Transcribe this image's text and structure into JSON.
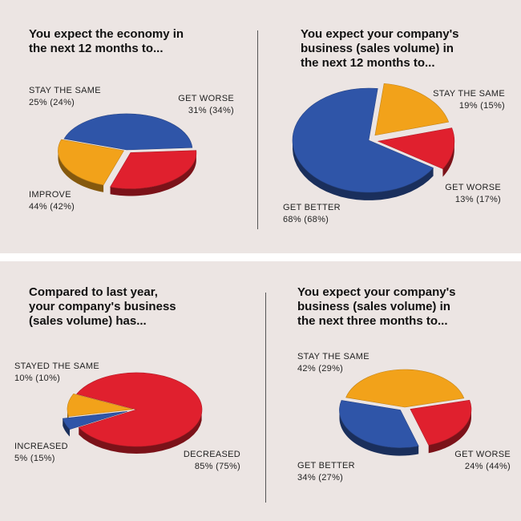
{
  "chart_data": [
    {
      "type": "pie",
      "title": "You expect the economy in the next 12 months to...",
      "slices": [
        {
          "label": "IMPROVE",
          "value": 44,
          "prev": 42,
          "text": "44% (42%)",
          "color": "#2f55a8"
        },
        {
          "label": "GET WORSE",
          "value": 31,
          "prev": 34,
          "text": "31% (34%)",
          "color": "#e0202e"
        },
        {
          "label": "STAY THE SAME",
          "value": 25,
          "prev": 24,
          "text": "25% (24%)",
          "color": "#f2a21a"
        }
      ]
    },
    {
      "type": "pie",
      "title": "You expect your company's business (sales volume) in the next 12 months to...",
      "slices": [
        {
          "label": "GET BETTER",
          "value": 68,
          "prev": 68,
          "text": "68% (68%)",
          "color": "#2f55a8"
        },
        {
          "label": "STAY THE SAME",
          "value": 19,
          "prev": 15,
          "text": "19% (15%)",
          "color": "#f2a21a"
        },
        {
          "label": "GET WORSE",
          "value": 13,
          "prev": 17,
          "text": "13% (17%)",
          "color": "#e0202e"
        }
      ]
    },
    {
      "type": "pie",
      "title": "Compared to last year, your company's business (sales volume) has...",
      "slices": [
        {
          "label": "DECREASED",
          "value": 85,
          "prev": 75,
          "text": "85% (75%)",
          "color": "#e0202e"
        },
        {
          "label": "INCREASED",
          "value": 5,
          "prev": 15,
          "text": "5% (15%)",
          "color": "#2f55a8"
        },
        {
          "label": "STAYED THE SAME",
          "value": 10,
          "prev": 10,
          "text": "10% (10%)",
          "color": "#f2a21a"
        }
      ]
    },
    {
      "type": "pie",
      "title": "You expect your company's business (sales volume) in the next three months to...",
      "slices": [
        {
          "label": "STAY THE SAME",
          "value": 42,
          "prev": 29,
          "text": "42% (29%)",
          "color": "#f2a21a"
        },
        {
          "label": "GET WORSE",
          "value": 24,
          "prev": 44,
          "text": "24% (44%)",
          "color": "#e0202e"
        },
        {
          "label": "GET BETTER",
          "value": 34,
          "prev": 27,
          "text": "34% (27%)",
          "color": "#2f55a8"
        }
      ]
    }
  ]
}
